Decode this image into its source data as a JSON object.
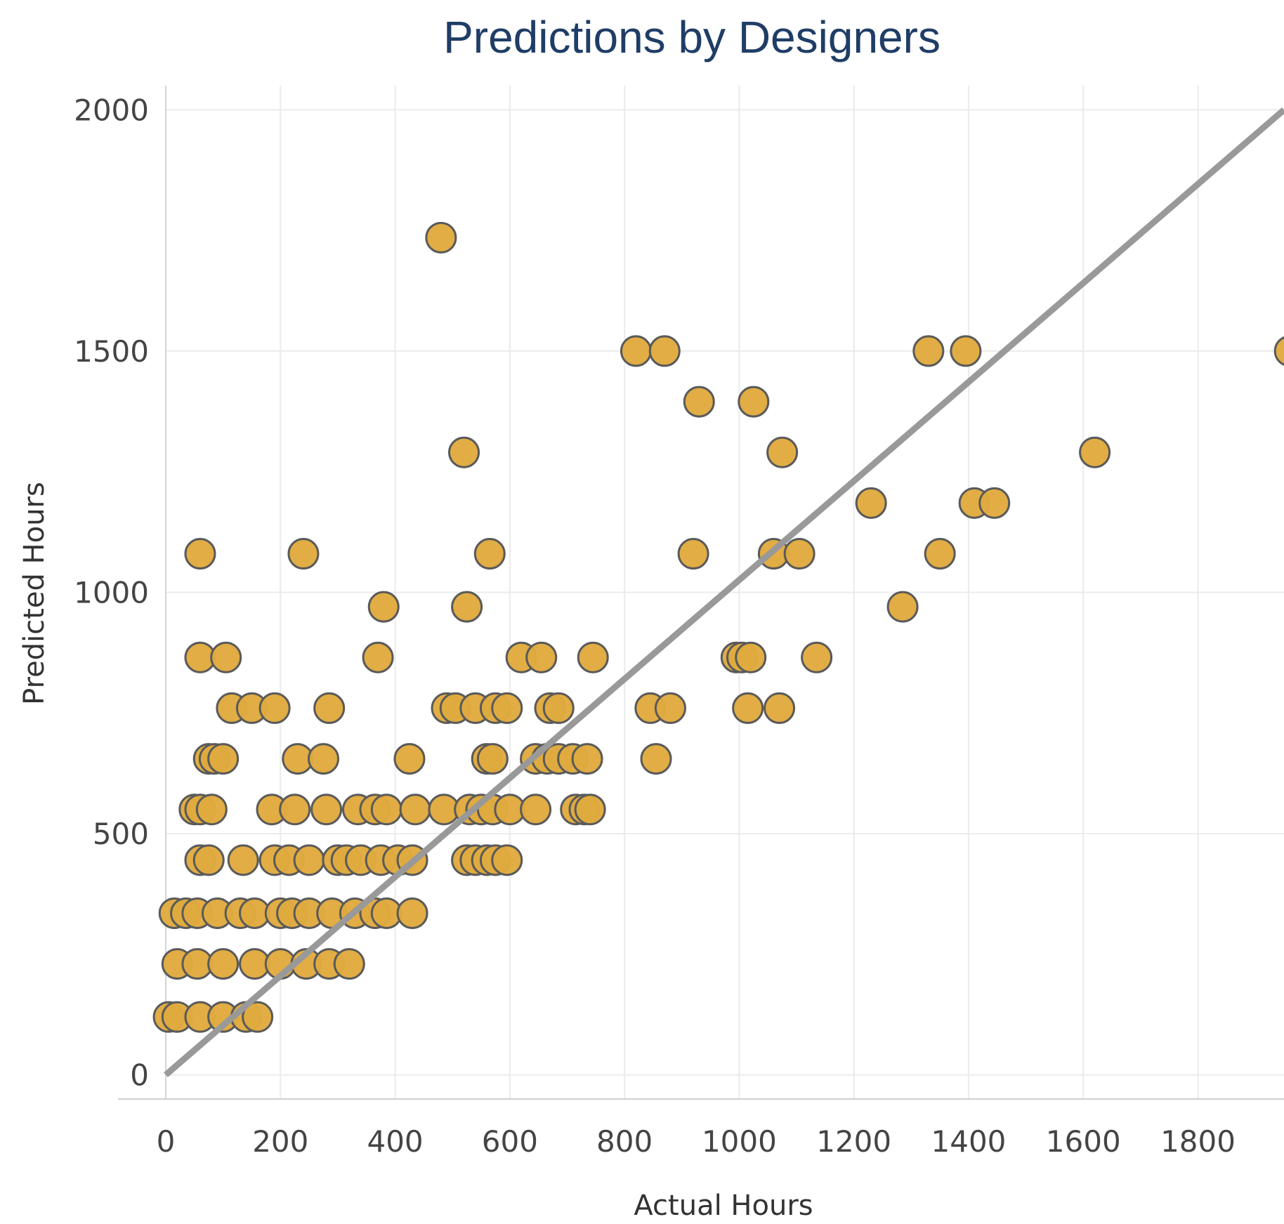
{
  "chart_data": {
    "type": "scatter",
    "title": "Predictions by Designers",
    "xlabel": "Actual Hours",
    "ylabel": "Predicted Hours",
    "xlim": [
      0,
      1950
    ],
    "ylim": [
      -50,
      2050
    ],
    "xticks": [
      0,
      200,
      400,
      600,
      800,
      1000,
      1200,
      1400,
      1600,
      1800
    ],
    "yticks": [
      0,
      500,
      1000,
      1500,
      2000
    ],
    "grid": true,
    "legend": "none",
    "reference_line": {
      "from": [
        0,
        0
      ],
      "to": [
        1950,
        2000
      ],
      "color": "#999999"
    },
    "colors": {
      "point_fill": "#e0aa3e",
      "point_stroke": "#5a5a5a",
      "title": "#1f3d66",
      "grid": "#ebebeb"
    },
    "points": [
      [
        480,
        1735
      ],
      [
        820,
        1500
      ],
      [
        870,
        1500
      ],
      [
        1330,
        1500
      ],
      [
        1395,
        1500
      ],
      [
        1960,
        1500
      ],
      [
        930,
        1395
      ],
      [
        1025,
        1395
      ],
      [
        520,
        1290
      ],
      [
        1075,
        1290
      ],
      [
        1620,
        1290
      ],
      [
        1230,
        1185
      ],
      [
        1410,
        1185
      ],
      [
        1445,
        1185
      ],
      [
        60,
        1080
      ],
      [
        240,
        1080
      ],
      [
        565,
        1080
      ],
      [
        920,
        1080
      ],
      [
        1060,
        1080
      ],
      [
        1105,
        1080
      ],
      [
        1350,
        1080
      ],
      [
        380,
        970
      ],
      [
        525,
        970
      ],
      [
        1285,
        970
      ],
      [
        60,
        865
      ],
      [
        105,
        865
      ],
      [
        370,
        865
      ],
      [
        620,
        865
      ],
      [
        655,
        865
      ],
      [
        745,
        865
      ],
      [
        995,
        865
      ],
      [
        1005,
        865
      ],
      [
        1020,
        865
      ],
      [
        1135,
        865
      ],
      [
        115,
        760
      ],
      [
        150,
        760
      ],
      [
        190,
        760
      ],
      [
        285,
        760
      ],
      [
        490,
        760
      ],
      [
        505,
        760
      ],
      [
        540,
        760
      ],
      [
        575,
        760
      ],
      [
        595,
        760
      ],
      [
        670,
        760
      ],
      [
        685,
        760
      ],
      [
        845,
        760
      ],
      [
        880,
        760
      ],
      [
        1015,
        760
      ],
      [
        1070,
        760
      ],
      [
        75,
        655
      ],
      [
        85,
        655
      ],
      [
        100,
        655
      ],
      [
        230,
        655
      ],
      [
        275,
        655
      ],
      [
        425,
        655
      ],
      [
        560,
        655
      ],
      [
        570,
        655
      ],
      [
        645,
        655
      ],
      [
        665,
        655
      ],
      [
        685,
        655
      ],
      [
        710,
        655
      ],
      [
        735,
        655
      ],
      [
        855,
        655
      ],
      [
        50,
        550
      ],
      [
        60,
        550
      ],
      [
        80,
        550
      ],
      [
        185,
        550
      ],
      [
        225,
        550
      ],
      [
        280,
        550
      ],
      [
        335,
        550
      ],
      [
        365,
        550
      ],
      [
        385,
        550
      ],
      [
        435,
        550
      ],
      [
        485,
        550
      ],
      [
        530,
        550
      ],
      [
        550,
        550
      ],
      [
        570,
        550
      ],
      [
        600,
        550
      ],
      [
        645,
        550
      ],
      [
        715,
        550
      ],
      [
        730,
        550
      ],
      [
        740,
        550
      ],
      [
        60,
        445
      ],
      [
        75,
        445
      ],
      [
        135,
        445
      ],
      [
        190,
        445
      ],
      [
        215,
        445
      ],
      [
        250,
        445
      ],
      [
        300,
        445
      ],
      [
        315,
        445
      ],
      [
        340,
        445
      ],
      [
        375,
        445
      ],
      [
        405,
        445
      ],
      [
        430,
        445
      ],
      [
        525,
        445
      ],
      [
        540,
        445
      ],
      [
        560,
        445
      ],
      [
        575,
        445
      ],
      [
        595,
        445
      ],
      [
        15,
        335
      ],
      [
        35,
        335
      ],
      [
        55,
        335
      ],
      [
        90,
        335
      ],
      [
        130,
        335
      ],
      [
        155,
        335
      ],
      [
        200,
        335
      ],
      [
        220,
        335
      ],
      [
        250,
        335
      ],
      [
        290,
        335
      ],
      [
        330,
        335
      ],
      [
        365,
        335
      ],
      [
        385,
        335
      ],
      [
        430,
        335
      ],
      [
        20,
        230
      ],
      [
        55,
        230
      ],
      [
        100,
        230
      ],
      [
        155,
        230
      ],
      [
        200,
        230
      ],
      [
        245,
        230
      ],
      [
        285,
        230
      ],
      [
        320,
        230
      ],
      [
        5,
        120
      ],
      [
        20,
        120
      ],
      [
        60,
        120
      ],
      [
        100,
        120
      ],
      [
        140,
        120
      ],
      [
        160,
        120
      ]
    ]
  }
}
